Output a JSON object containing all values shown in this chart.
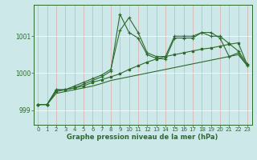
{
  "background_color": "#cce8e8",
  "grid_color": "#aacccc",
  "line_color": "#2d6a2d",
  "title": "Graphe pression niveau de la mer (hPa)",
  "xlim": [
    -0.5,
    23.5
  ],
  "ylim": [
    998.6,
    1001.85
  ],
  "yticks": [
    999,
    1000,
    1001
  ],
  "xticks": [
    0,
    1,
    2,
    3,
    4,
    5,
    6,
    7,
    8,
    9,
    10,
    11,
    12,
    13,
    14,
    15,
    16,
    17,
    18,
    19,
    20,
    21,
    22,
    23
  ],
  "series1_x": [
    0,
    1,
    2,
    3,
    4,
    5,
    6,
    7,
    8,
    9,
    10,
    11,
    12,
    13,
    14,
    15,
    16,
    17,
    18,
    19,
    20,
    21,
    22,
    23
  ],
  "series1_y": [
    999.15,
    999.15,
    999.55,
    999.55,
    999.65,
    999.75,
    999.85,
    999.95,
    1000.1,
    1001.15,
    1001.5,
    1001.1,
    1000.55,
    1000.45,
    1000.45,
    1001.0,
    1001.0,
    1001.0,
    1001.1,
    1001.0,
    1001.0,
    1000.8,
    1000.6,
    1000.25
  ],
  "series2_x": [
    0,
    1,
    2,
    3,
    4,
    5,
    6,
    7,
    8,
    9,
    10,
    11,
    12,
    13,
    14,
    15,
    16,
    17,
    18,
    19,
    20,
    21,
    22,
    23
  ],
  "series2_y": [
    999.15,
    999.15,
    999.55,
    999.55,
    999.6,
    999.7,
    999.8,
    999.9,
    1000.05,
    1001.6,
    1001.1,
    1000.95,
    1000.5,
    1000.4,
    1000.38,
    1000.95,
    1000.95,
    1000.95,
    1001.1,
    1001.1,
    1000.95,
    1000.45,
    1000.55,
    1000.2
  ],
  "series3_x": [
    0,
    1,
    2,
    3,
    4,
    5,
    6,
    7,
    8,
    9,
    10,
    11,
    12,
    13,
    14,
    15,
    16,
    17,
    18,
    19,
    20,
    21,
    22,
    23
  ],
  "series3_y": [
    999.15,
    999.15,
    999.5,
    999.55,
    999.6,
    999.65,
    999.75,
    999.82,
    999.9,
    999.98,
    1000.1,
    1000.2,
    1000.3,
    1000.38,
    1000.45,
    1000.5,
    1000.55,
    1000.6,
    1000.65,
    1000.68,
    1000.73,
    1000.78,
    1000.82,
    1000.22
  ],
  "series4_x": [
    0,
    1,
    2,
    3,
    4,
    5,
    6,
    7,
    8,
    9,
    10,
    11,
    12,
    13,
    14,
    15,
    16,
    17,
    18,
    19,
    20,
    21,
    22,
    23
  ],
  "series4_y": [
    999.15,
    999.15,
    999.45,
    999.5,
    999.55,
    999.6,
    999.65,
    999.72,
    999.8,
    999.85,
    999.9,
    999.95,
    1000.0,
    1000.05,
    1000.1,
    1000.15,
    1000.2,
    1000.25,
    1000.3,
    1000.35,
    1000.4,
    1000.45,
    1000.5,
    1000.2
  ]
}
